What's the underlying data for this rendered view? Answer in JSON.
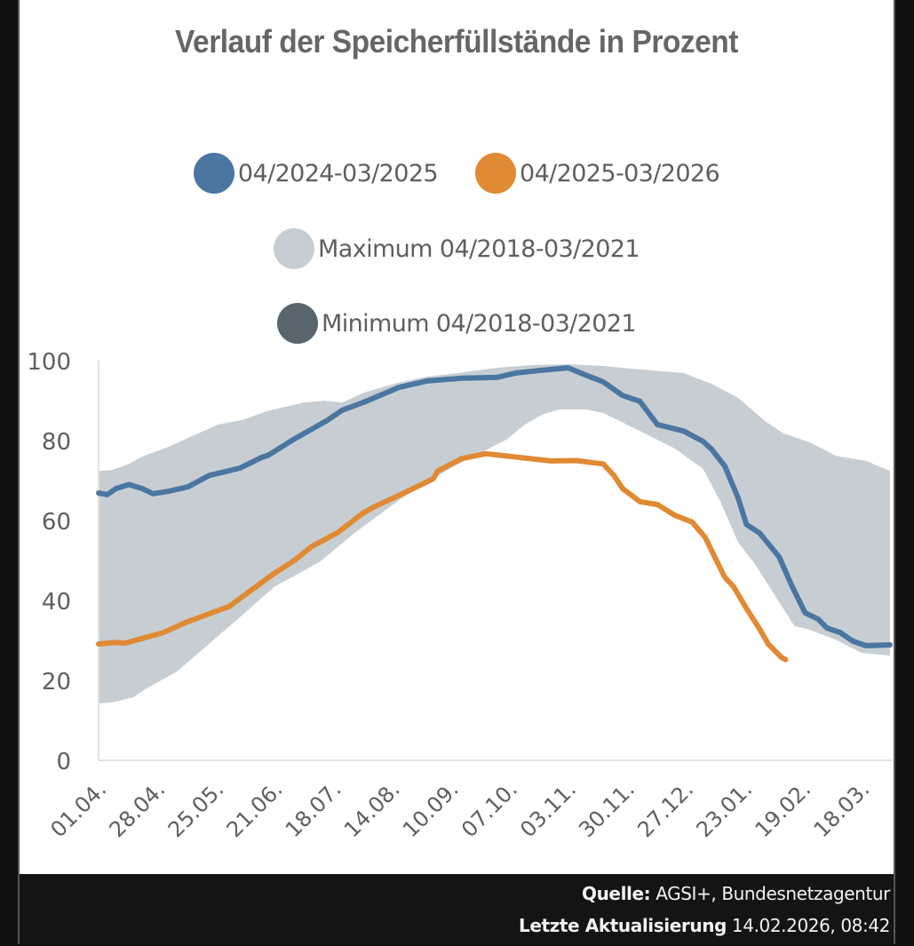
{
  "chart_data": {
    "type": "line",
    "title": "Verlauf der Speicherfüllstände in Prozent",
    "xlabel": "",
    "ylabel": "",
    "ylim": [
      0,
      100
    ],
    "yticks": [
      "0",
      "20",
      "40",
      "60",
      "80",
      "100"
    ],
    "x_domain_days": [
      0,
      364
    ],
    "xticks": [
      {
        "day": 0,
        "label": "01.04."
      },
      {
        "day": 27,
        "label": "28.04."
      },
      {
        "day": 54,
        "label": "25.05."
      },
      {
        "day": 81,
        "label": "21.06."
      },
      {
        "day": 108,
        "label": "18.07."
      },
      {
        "day": 135,
        "label": "14.08."
      },
      {
        "day": 162,
        "label": "10.09."
      },
      {
        "day": 189,
        "label": "07.10."
      },
      {
        "day": 216,
        "label": "03.11."
      },
      {
        "day": 243,
        "label": "30.11."
      },
      {
        "day": 270,
        "label": "27.12."
      },
      {
        "day": 297,
        "label": "23.01."
      },
      {
        "day": 324,
        "label": "19.02."
      },
      {
        "day": 351,
        "label": "18.03."
      }
    ],
    "grid": false,
    "legend_position": "top-center",
    "band": {
      "name_max": "Maximum 04/2018-03/2021",
      "name_min": "Minimum 04/2018-03/2021",
      "color": "#c7ced3",
      "upper": [
        [
          0,
          72.4
        ],
        [
          6,
          72.6
        ],
        [
          14,
          74.2
        ],
        [
          20,
          76
        ],
        [
          32,
          78.4
        ],
        [
          40,
          80.4
        ],
        [
          55,
          84
        ],
        [
          67,
          85.3
        ],
        [
          77,
          87.3
        ],
        [
          94,
          89.5
        ],
        [
          104,
          90
        ],
        [
          112,
          89.5
        ],
        [
          122,
          92
        ],
        [
          138,
          94.5
        ],
        [
          151,
          96
        ],
        [
          167,
          97
        ],
        [
          183,
          98.2
        ],
        [
          200,
          98.9
        ],
        [
          216,
          99.1
        ],
        [
          232,
          98.7
        ],
        [
          241,
          98.2
        ],
        [
          249,
          97.8
        ],
        [
          269,
          96.9
        ],
        [
          282,
          94.2
        ],
        [
          294,
          90.7
        ],
        [
          307,
          84.7
        ],
        [
          315,
          81.8
        ],
        [
          327,
          79.6
        ],
        [
          339,
          76.2
        ],
        [
          353,
          74.9
        ],
        [
          364,
          72.4
        ]
      ],
      "lower": [
        [
          0,
          14.2
        ],
        [
          8,
          14.7
        ],
        [
          16,
          15.8
        ],
        [
          22,
          18
        ],
        [
          36,
          22.2
        ],
        [
          53,
          30.2
        ],
        [
          65,
          35.8
        ],
        [
          81,
          43.5
        ],
        [
          94,
          47.3
        ],
        [
          102,
          49.8
        ],
        [
          118,
          57
        ],
        [
          143,
          67
        ],
        [
          163,
          73.5
        ],
        [
          176,
          77
        ],
        [
          188,
          80.4
        ],
        [
          196,
          84
        ],
        [
          204,
          86.5
        ],
        [
          212,
          87.8
        ],
        [
          224,
          87.8
        ],
        [
          232,
          86.9
        ],
        [
          249,
          82.4
        ],
        [
          265,
          78
        ],
        [
          278,
          72.9
        ],
        [
          286,
          64.7
        ],
        [
          294,
          54.7
        ],
        [
          302,
          49
        ],
        [
          311,
          41.3
        ],
        [
          320,
          33.6
        ],
        [
          327,
          32.7
        ],
        [
          339,
          30.2
        ],
        [
          351,
          26.9
        ],
        [
          364,
          26.2
        ]
      ]
    },
    "series": [
      {
        "name": "04/2024-03/2025",
        "color": "#4a76a0",
        "points": [
          [
            0,
            66.9
          ],
          [
            4,
            66.5
          ],
          [
            8,
            68
          ],
          [
            14,
            69
          ],
          [
            20,
            68
          ],
          [
            25,
            66.7
          ],
          [
            32,
            67.3
          ],
          [
            36,
            67.8
          ],
          [
            41,
            68.4
          ],
          [
            51,
            71.3
          ],
          [
            65,
            73.1
          ],
          [
            75,
            75.8
          ],
          [
            78,
            76.3
          ],
          [
            90,
            80.4
          ],
          [
            105,
            85
          ],
          [
            112,
            87.6
          ],
          [
            122,
            89.6
          ],
          [
            138,
            93.3
          ],
          [
            151,
            94.9
          ],
          [
            167,
            95.6
          ],
          [
            183,
            95.8
          ],
          [
            192,
            96.9
          ],
          [
            204,
            97.6
          ],
          [
            216,
            98.2
          ],
          [
            224,
            96.4
          ],
          [
            232,
            94.7
          ],
          [
            241,
            91.3
          ],
          [
            249,
            89.8
          ],
          [
            257,
            84
          ],
          [
            269,
            82.4
          ],
          [
            278,
            79.8
          ],
          [
            282,
            77.8
          ],
          [
            288,
            73.6
          ],
          [
            294,
            65.8
          ],
          [
            298,
            59
          ],
          [
            304,
            56.9
          ],
          [
            313,
            50.9
          ],
          [
            319,
            43.5
          ],
          [
            325,
            36.9
          ],
          [
            331,
            35.3
          ],
          [
            335,
            33.1
          ],
          [
            341,
            32
          ],
          [
            347,
            29.8
          ],
          [
            353,
            28.7
          ],
          [
            364,
            28.9
          ]
        ]
      },
      {
        "name": "04/2025-03/2026",
        "color": "#e08a33",
        "points": [
          [
            0,
            29.1
          ],
          [
            8,
            29.5
          ],
          [
            12,
            29.3
          ],
          [
            20,
            30.5
          ],
          [
            30,
            32
          ],
          [
            40,
            34.5
          ],
          [
            50,
            36.5
          ],
          [
            60,
            38.5
          ],
          [
            70,
            42.5
          ],
          [
            80,
            46.5
          ],
          [
            90,
            50
          ],
          [
            98,
            53.5
          ],
          [
            110,
            57
          ],
          [
            122,
            62
          ],
          [
            127,
            63.5
          ],
          [
            141,
            67
          ],
          [
            154,
            70.5
          ],
          [
            156,
            72.4
          ],
          [
            167,
            75.5
          ],
          [
            178,
            76.7
          ],
          [
            190,
            76
          ],
          [
            208,
            74.9
          ],
          [
            220,
            75
          ],
          [
            228,
            74.4
          ],
          [
            232,
            74.2
          ],
          [
            237,
            71.3
          ],
          [
            241,
            68
          ],
          [
            249,
            64.7
          ],
          [
            257,
            64
          ],
          [
            265,
            61.3
          ],
          [
            273,
            59.6
          ],
          [
            279,
            55.8
          ],
          [
            283,
            51.3
          ],
          [
            288,
            45.8
          ],
          [
            292,
            43.5
          ],
          [
            298,
            38
          ],
          [
            304,
            32.9
          ],
          [
            308,
            29.1
          ],
          [
            314,
            25.8
          ],
          [
            316,
            25.2
          ]
        ]
      }
    ]
  },
  "legend": {
    "items": [
      {
        "label": "04/2024-03/2025",
        "color": "#4a76a0"
      },
      {
        "label": "04/2025-03/2026",
        "color": "#e08a33"
      },
      {
        "label": "Maximum 04/2018-03/2021",
        "color": "#c7ced3"
      },
      {
        "label": "Minimum 04/2018-03/2021",
        "color": "#59656e"
      }
    ]
  },
  "footer": {
    "source_label": "Quelle:",
    "source_value": "AGSI+, Bundesnetzagentur",
    "updated_label": "Letzte Aktualisierung",
    "updated_value": "14.02.2026, 08:42"
  }
}
